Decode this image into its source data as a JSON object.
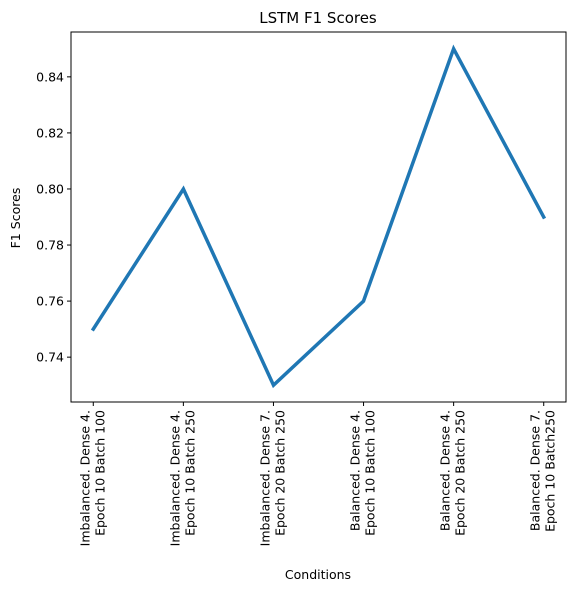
{
  "chart_data": {
    "type": "line",
    "title": "LSTM F1 Scores",
    "xlabel": "Conditions",
    "ylabel": "F1 Scores",
    "categories": [
      [
        "Imbalanced. Dense 4.",
        "Epoch 10 Batch 100"
      ],
      [
        "Imbalanced. Dense 4.",
        "Epoch 10 Batch 250"
      ],
      [
        "Imbalanced. Dense 7.",
        "Epoch 20 Batch 250"
      ],
      [
        "Balanced. Dense 4.",
        "Epoch 10 Batch 100"
      ],
      [
        "Balanced. Dense 4.",
        "Epoch 20 Batch 250"
      ],
      [
        "Balanced. Dense 7.",
        "Epoch 10 Batch250"
      ]
    ],
    "series": [
      {
        "values": [
          0.75,
          0.8,
          0.73,
          0.76,
          0.85,
          0.79
        ],
        "color": "#1f77b4"
      }
    ],
    "yticks": [
      "0.74",
      "0.76",
      "0.78",
      "0.80",
      "0.82",
      "0.84"
    ],
    "ylim": [
      0.724,
      0.856
    ],
    "grid": false,
    "legend": "none"
  }
}
